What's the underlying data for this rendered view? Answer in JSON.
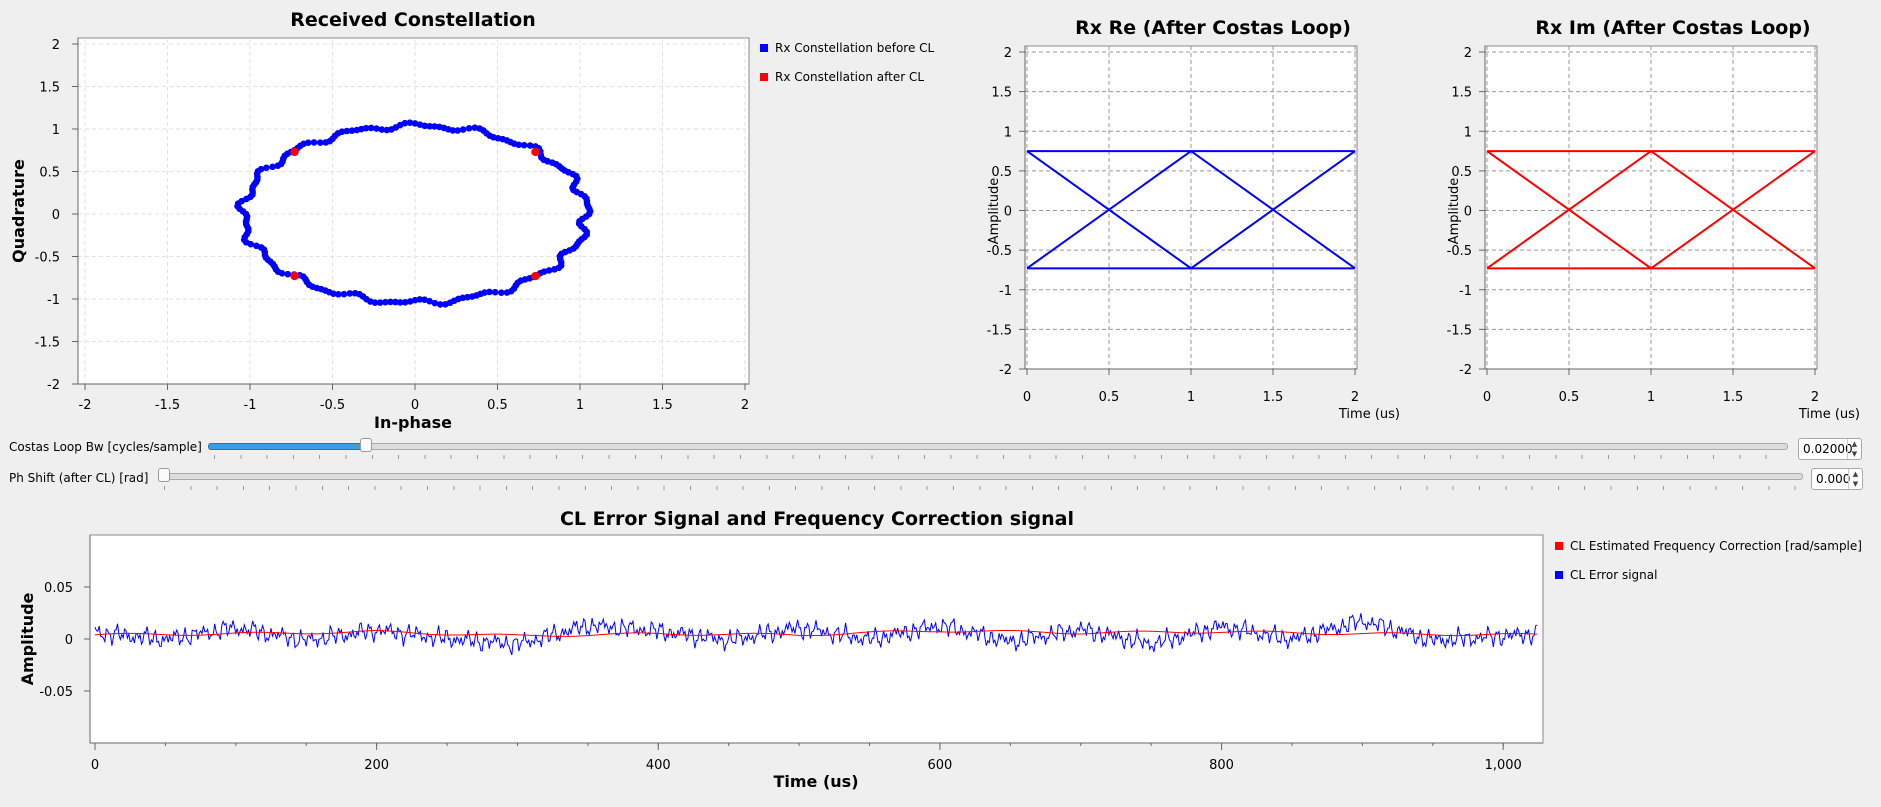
{
  "constellation": {
    "title": "Received Constellation",
    "xlabel": "In-phase",
    "ylabel": "Quadrature",
    "xticks": [
      "-2",
      "-1.5",
      "-1",
      "-0.5",
      "0",
      "0.5",
      "1",
      "1.5",
      "2"
    ],
    "yticks": [
      "2",
      "1.5",
      "1",
      "0.5",
      "0",
      "-0.5",
      "-1",
      "-1.5",
      "-2"
    ],
    "legend": [
      {
        "label": "Rx Constellation before CL",
        "color": "#0000ff"
      },
      {
        "label": "Rx Constellation after CL",
        "color": "#ff0000"
      }
    ]
  },
  "rx_re": {
    "title": "Rx Re (After Costas Loop)",
    "xlabel": "Time (us)",
    "ylabel": "Amplitude",
    "xticks": [
      "0",
      "0.5",
      "1",
      "1.5",
      "2"
    ],
    "yticks": [
      "2",
      "1.5",
      "1",
      "0.5",
      "0",
      "-0.5",
      "-1",
      "-1.5",
      "-2"
    ],
    "color": "#0000ff"
  },
  "rx_im": {
    "title": "Rx Im (After Costas Loop)",
    "xlabel": "Time (us)",
    "ylabel": "Amplitude",
    "xticks": [
      "0",
      "0.5",
      "1",
      "1.5",
      "2"
    ],
    "yticks": [
      "2",
      "1.5",
      "1",
      "0.5",
      "0",
      "-0.5",
      "-1",
      "-1.5",
      "-2"
    ],
    "color": "#ff0000"
  },
  "controls": {
    "costas_bw": {
      "label": "Costas Loop Bw [cycles/sample]",
      "value": "0.02000",
      "level": 0.1
    },
    "ph_shift": {
      "label": "Ph Shift (after CL) [rad]",
      "value": "0.000",
      "level": 0.0
    }
  },
  "error_plot": {
    "title": "CL Error Signal and Frequency Correction signal",
    "xlabel": "Time (us)",
    "ylabel": "Amplitude",
    "xticks": [
      "0",
      "200",
      "400",
      "600",
      "800",
      "1,000"
    ],
    "yticks": [
      "0.05",
      "0",
      "-0.05"
    ],
    "legend": [
      {
        "label": "CL Estimated Frequency Correction [rad/sample]",
        "color": "#ff0000"
      },
      {
        "label": "CL Error signal",
        "color": "#0000ff"
      }
    ]
  },
  "chart_data": [
    {
      "type": "scatter",
      "title": "Received Constellation",
      "xlabel": "In-phase",
      "ylabel": "Quadrature",
      "xlim": [
        -2,
        2
      ],
      "ylim": [
        -2,
        2
      ],
      "grid": true,
      "legend_position": "right",
      "series": [
        {
          "name": "Rx Constellation before CL",
          "shape": "circle",
          "radius_x": 1.04,
          "radius_y": 1.04
        },
        {
          "name": "Rx Constellation after CL",
          "x": [
            -0.73,
            0.73,
            -0.73,
            0.73
          ],
          "y": [
            0.73,
            0.73,
            -0.73,
            -0.73
          ]
        }
      ]
    },
    {
      "type": "line",
      "title": "Rx Re (After Costas Loop)",
      "xlabel": "Time (us)",
      "ylabel": "Amplitude",
      "xlim": [
        0,
        2
      ],
      "ylim": [
        -2,
        2
      ],
      "grid": true,
      "series": [
        {
          "x": [
            0,
            1,
            2
          ],
          "y": [
            0.75,
            0.75,
            0.75
          ]
        },
        {
          "x": [
            0,
            1,
            2
          ],
          "y": [
            0.75,
            -0.73,
            0.75
          ]
        },
        {
          "x": [
            0,
            1,
            2
          ],
          "y": [
            -0.73,
            0.75,
            -0.73
          ]
        },
        {
          "x": [
            0,
            1,
            2
          ],
          "y": [
            -0.73,
            -0.73,
            -0.73
          ]
        }
      ]
    },
    {
      "type": "line",
      "title": "Rx Im (After Costas Loop)",
      "xlabel": "Time (us)",
      "ylabel": "Amplitude",
      "xlim": [
        0,
        2
      ],
      "ylim": [
        -2,
        2
      ],
      "grid": true,
      "series": [
        {
          "x": [
            0,
            1,
            2
          ],
          "y": [
            0.75,
            0.75,
            0.75
          ]
        },
        {
          "x": [
            0,
            1,
            2
          ],
          "y": [
            0.75,
            -0.73,
            0.75
          ]
        },
        {
          "x": [
            0,
            1,
            2
          ],
          "y": [
            -0.73,
            0.75,
            -0.73
          ]
        },
        {
          "x": [
            0,
            1,
            2
          ],
          "y": [
            -0.73,
            -0.73,
            -0.73
          ]
        }
      ]
    },
    {
      "type": "line",
      "title": "CL Error Signal and Frequency Correction signal",
      "xlabel": "Time (us)",
      "ylabel": "Amplitude",
      "xlim": [
        0,
        1024
      ],
      "ylim": [
        -0.1,
        0.1
      ],
      "grid": false,
      "legend_position": "right",
      "series": [
        {
          "name": "CL Estimated Frequency Correction [rad/sample]",
          "x": [
            0,
            100,
            200,
            300,
            400,
            500,
            600,
            700,
            800,
            900,
            1024
          ],
          "y": [
            0.004,
            0.005,
            0.007,
            0.003,
            0.005,
            0.004,
            0.008,
            0.006,
            0.007,
            0.005,
            0.004
          ]
        },
        {
          "name": "CL Error signal",
          "x": [
            0,
            50,
            100,
            150,
            200,
            250,
            300,
            350,
            400,
            450,
            500,
            550,
            600,
            650,
            700,
            750,
            800,
            850,
            900,
            950,
            1024
          ],
          "y": [
            0.005,
            -0.01,
            0.015,
            -0.012,
            0.01,
            -0.008,
            -0.02,
            0.02,
            0.008,
            -0.012,
            0.015,
            -0.01,
            0.02,
            -0.015,
            0.012,
            -0.02,
            0.018,
            -0.01,
            0.03,
            -0.012,
            0.002
          ]
        }
      ]
    }
  ]
}
